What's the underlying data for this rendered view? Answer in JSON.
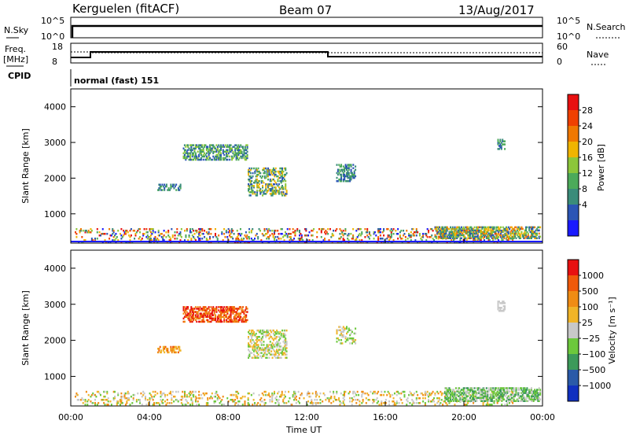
{
  "header": {
    "station": "Kerguelen (fitACF)",
    "beam": "Beam 07",
    "date": "13/Aug/2017"
  },
  "top_panels": {
    "nsky_label": "N.Sky",
    "nsearch_label": "N.Search",
    "sky_ticks": [
      "10^5",
      "10^0"
    ],
    "sky_right_ticks": [
      "10^5",
      "10^0"
    ],
    "freq_label_1": "Freq.",
    "freq_label_2": "[MHz]",
    "freq_ticks": [
      "18",
      "8"
    ],
    "nave_label": "Nave",
    "nave_ticks": [
      "60",
      "0"
    ],
    "cpid_label": "CPID",
    "cpid_text": "normal (fast) 151"
  },
  "chart_data": [
    {
      "type": "heatmap",
      "name": "power",
      "ylabel": "Slant Range [km]",
      "xlabel": "",
      "ylim": [
        180,
        4500
      ],
      "yticks": [
        1000,
        2000,
        3000,
        4000
      ],
      "xlim": [
        0,
        24
      ],
      "colorbar_label": "Power [dB]",
      "colorbar_ticks": [
        "28",
        "24",
        "20",
        "16",
        "12",
        "8",
        "4"
      ],
      "colorbar_colors": [
        "#1a1aff",
        "#2b55b5",
        "#3a8c7a",
        "#4caa5a",
        "#8cc63a",
        "#f0b400",
        "#f07800",
        "#f04000",
        "#e81010"
      ]
    },
    {
      "type": "heatmap",
      "name": "velocity",
      "ylabel": "Slant Range [km]",
      "xlabel": "Time UT",
      "ylim": [
        180,
        4500
      ],
      "yticks": [
        1000,
        2000,
        3000,
        4000
      ],
      "xlim": [
        0,
        24
      ],
      "xticks": [
        "00:00",
        "04:00",
        "08:00",
        "12:00",
        "16:00",
        "20:00",
        "00:00"
      ],
      "colorbar_label": "Velocity [m s⁻¹]",
      "colorbar_ticks": [
        "1000",
        "500",
        "100",
        "25",
        "−25",
        "−100",
        "−500",
        "−1000"
      ],
      "colorbar_colors": [
        "#1030c0",
        "#2a5aa8",
        "#3c9a5a",
        "#6cc83c",
        "#c8c8c8",
        "#f0b428",
        "#f08c14",
        "#f05a0a",
        "#e81010"
      ]
    }
  ]
}
